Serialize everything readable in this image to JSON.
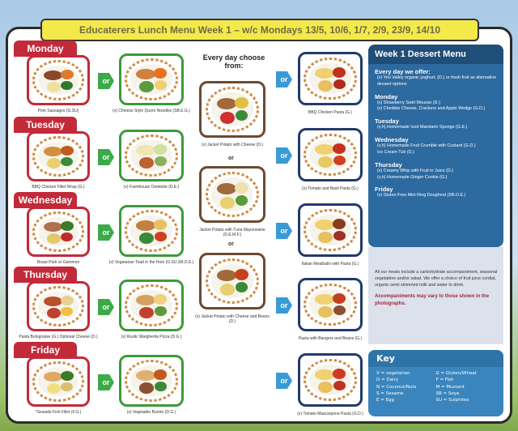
{
  "title": "Educaterers Lunch Menu Week 1 – w/c Mondays 13/5, 10/6, 1/7, 2/9, 23/9, 14/10",
  "or_label": "or",
  "days": [
    {
      "name": "Monday",
      "main": "Pork Sausages (G.SU)",
      "veg": "(v) Chinese Style Quorn Noodles (SB.E.G.)",
      "pasta": "BBQ Chicken Pasta (G.)"
    },
    {
      "name": "Tuesday",
      "main": "BBQ Chicken Fillet Wrap (G.)",
      "veg": "(v) Farmhouse Omelette (D.E.)",
      "pasta": "(v) Tomato and Basil Pasta (G.)"
    },
    {
      "name": "Wednesday",
      "main": "Roast Pork or Gammon",
      "veg": "(v) Vegetarian Toad in the Hole (G.SU.SB.D.E.)",
      "pasta": "Italian Meatballs with Pasta (G.)"
    },
    {
      "name": "Thursday",
      "main": "Pasta Bolognaise (G.) Optional Cheese (D.)",
      "veg": "(v) Rustic Margherita Pizza (D.G.)",
      "pasta": "Pasta with Bangers and Beans (G.)"
    },
    {
      "name": "Friday",
      "main": "*Seaside Fish Fillet (F.G.)",
      "veg": "(v) Vegetable Burrito (D.G.)",
      "pasta": "(v) Tomato Mascarpone Pasta (G.D.)"
    }
  ],
  "everyday": {
    "heading": "Every day choose from:",
    "options": [
      "(v) Jacket Potato with Cheese (D.)",
      "Jacket Potato with Tuna Mayonnaise (D.E.M.F.)",
      "(v) Jacket Potato with Cheese and Beans (D.)"
    ]
  },
  "dessert": {
    "title": "Week 1 Dessert Menu",
    "sections": [
      {
        "heading": "Every day we offer:",
        "items": [
          "(v) Yeo Valley organic yoghurt, (D.) or fresh fruit as alternative dessert options"
        ]
      },
      {
        "heading": "Monday",
        "items": [
          "(v) Strawberry Swirl Mousse (D.)",
          "(v) Cheddar Cheese, Crackers and Apple Wedge (G.D.)"
        ]
      },
      {
        "heading": "Tuesday",
        "items": [
          "(v,h) Homemade Iced Mandarin Sponge (G.E.)"
        ]
      },
      {
        "heading": "Wednesday",
        "items": [
          "(v,h) Homemade Fruit Crumble with Custard (G.D.)",
          "Ice Cream Tub (D.)"
        ]
      },
      {
        "heading": "Thursday",
        "items": [
          "(v) Creamy Whip with Fruit in Juice (D.)",
          "(v,h) Homemade Ginger Cookie (G.)"
        ]
      },
      {
        "heading": "Friday",
        "items": [
          "(v) Gluten Free Mini Ring Doughnut (SB.D.E.)"
        ]
      }
    ]
  },
  "info": {
    "text": "All our meals include a carbohydrate accompaniment, seasonal vegetables and/or salad. We offer a choice of fruit juice cordial, organic semi skimmed milk and water to drink.",
    "warning": "Accompaniments may vary to those shown in the photographs."
  },
  "key": {
    "title": "Key",
    "left": [
      "V = vegetarian",
      "D = Dairy",
      "N = Coconut/Nuts",
      "S = Sesame",
      "E = Egg"
    ],
    "right": [
      "G = Gluten/Wheat",
      "F = Fish",
      "M = Mustard",
      "SB = Soya",
      "SU = Sulphites"
    ]
  },
  "colors": {
    "day_tab": "#c22a3a",
    "veg_border": "#3b9a3b",
    "or_green": "#3daa4a",
    "or_blue": "#3a9ad6",
    "dessert_bg": "#2d6aa0",
    "title_bg": "#f4e94a"
  }
}
